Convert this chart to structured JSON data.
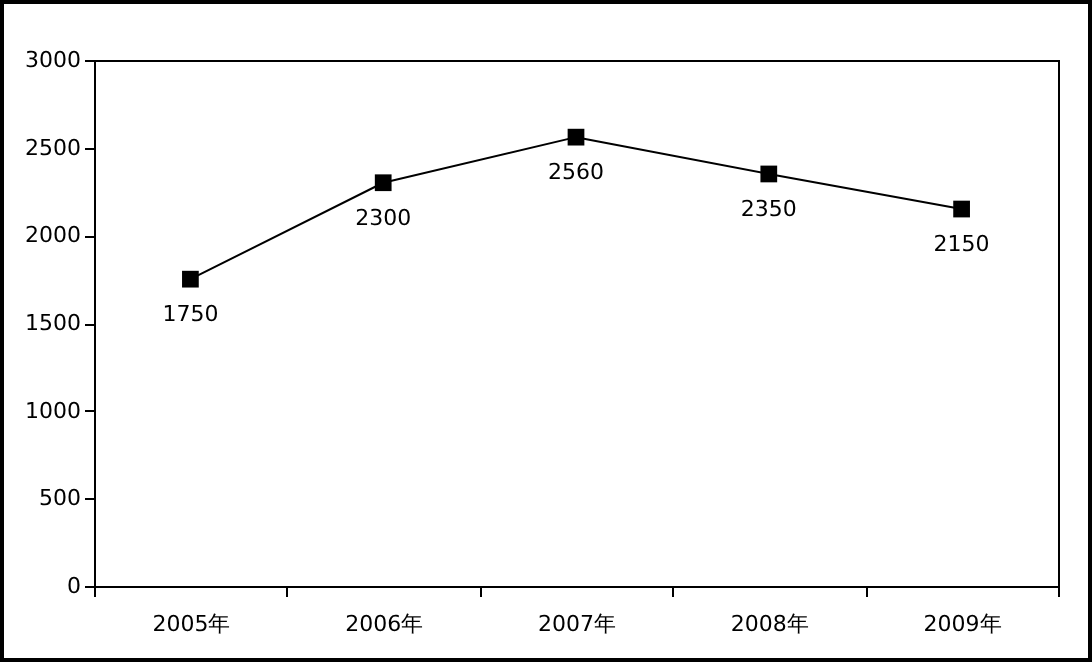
{
  "chart_data": {
    "type": "line",
    "categories": [
      "2005年",
      "2006年",
      "2007年",
      "2008年",
      "2009年"
    ],
    "series": [
      {
        "color": "#000000",
        "values": [
          1750,
          2300,
          2560,
          2350,
          2150
        ]
      }
    ],
    "ylim": [
      0,
      3000
    ],
    "yticks": [
      0,
      500,
      1000,
      1500,
      2000,
      2500,
      3000
    ],
    "grid": false,
    "marker": "square",
    "line_style": "solid",
    "data_labels": true
  }
}
